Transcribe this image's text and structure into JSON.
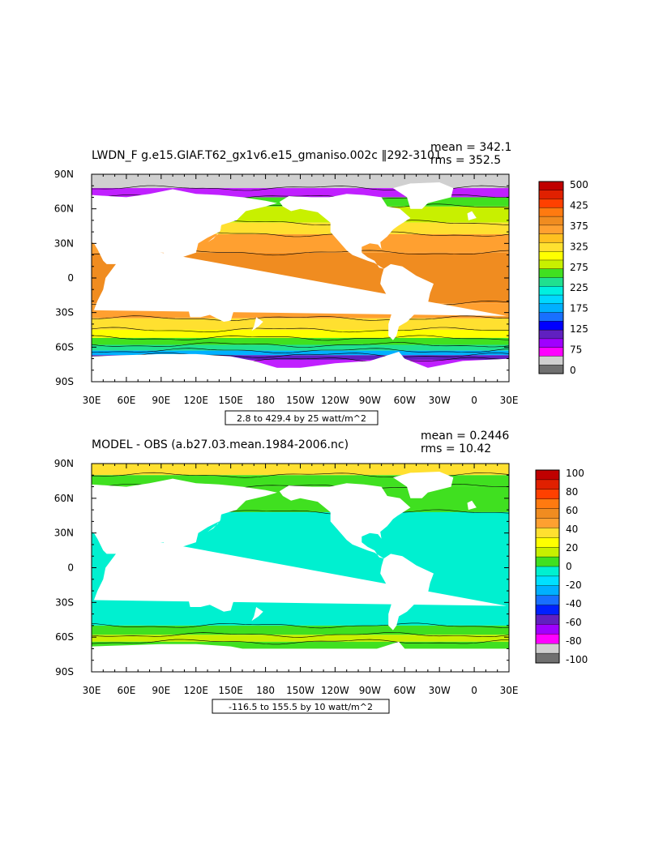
{
  "panels": [
    {
      "id": "top",
      "title": "LWDN_F g.e15.GIAF.T62_gx1v6.e15_gmaniso.002c ‖292-3101",
      "stat_mean": "mean = 342.1",
      "stat_rms": "rms = 352.5",
      "contour_info": "2.8 to 429.4 by 25 watt/m^2",
      "colorbar": {
        "labels": [
          "500",
          "425",
          "375",
          "325",
          "275",
          "225",
          "175",
          "125",
          "75",
          "0"
        ],
        "colors": [
          "#c00000",
          "#e02000",
          "#ff4000",
          "#ff7a10",
          "#f08c20",
          "#ffa030",
          "#ffc020",
          "#ffe030",
          "#ffff00",
          "#c8f000",
          "#40e020",
          "#20e090",
          "#00f0e0",
          "#00d8ff",
          "#00b0ff",
          "#1870ff",
          "#0000ff",
          "#6020c0",
          "#a000ff",
          "#ff00ff",
          "#d0d0d0",
          "#707070"
        ]
      },
      "map_zones": [
        {
          "lat": [
            78,
            90
          ],
          "value": 0,
          "color": "#d0d0d0"
        },
        {
          "lat": [
            70,
            78
          ],
          "value": 75,
          "color": "#c020ff"
        },
        {
          "lat": [
            62,
            70
          ],
          "value": 250,
          "color": "#40e020"
        },
        {
          "lat": [
            48,
            62
          ],
          "value": 290,
          "color": "#c8f000"
        },
        {
          "lat": [
            38,
            48
          ],
          "value": 320,
          "color": "#ffe030"
        },
        {
          "lat": [
            22,
            38
          ],
          "value": 350,
          "color": "#ffa030"
        },
        {
          "lat": [
            -22,
            22
          ],
          "value": 390,
          "color": "#f08c20"
        },
        {
          "lat": [
            -35,
            -22
          ],
          "value": 360,
          "color": "#ffa030"
        },
        {
          "lat": [
            -45,
            -35
          ],
          "value": 320,
          "color": "#ffe030"
        },
        {
          "lat": [
            -52,
            -45
          ],
          "value": 300,
          "color": "#ffff00"
        },
        {
          "lat": [
            -58,
            -52
          ],
          "value": 270,
          "color": "#40e020"
        },
        {
          "lat": [
            -63,
            -58
          ],
          "value": 230,
          "color": "#20e090"
        },
        {
          "lat": [
            -67,
            -63
          ],
          "value": 170,
          "color": "#00b0ff"
        },
        {
          "lat": [
            -71,
            -67
          ],
          "value": 110,
          "color": "#6020c0"
        },
        {
          "lat": [
            -78,
            -71
          ],
          "value": 75,
          "color": "#c020ff"
        }
      ]
    },
    {
      "id": "bottom",
      "title": "MODEL - OBS (a.b27.03.mean.1984-2006.nc)",
      "stat_mean": "mean = 0.2446",
      "stat_rms": "rms = 10.42",
      "contour_info": "-116.5 to 155.5 by 10 watt/m^2",
      "colorbar": {
        "labels": [
          "100",
          "80",
          "60",
          "40",
          "20",
          "0",
          "-20",
          "-40",
          "-60",
          "-80",
          "-100"
        ],
        "colors": [
          "#c00000",
          "#e02000",
          "#ff4000",
          "#ff7a10",
          "#f08c20",
          "#ffa030",
          "#ffe030",
          "#ffff00",
          "#c8f000",
          "#40e020",
          "#00f0d0",
          "#00e0ff",
          "#00b0ff",
          "#1870ff",
          "#0020ff",
          "#6020c0",
          "#a000ff",
          "#ff00ff",
          "#d0d0d0",
          "#707070"
        ]
      },
      "map_zones": [
        {
          "lat": [
            80,
            90
          ],
          "value": 30,
          "color": "#ffe030"
        },
        {
          "lat": [
            70,
            80
          ],
          "value": 10,
          "color": "#40e020"
        },
        {
          "lat": [
            48,
            70
          ],
          "value": 5,
          "color": "#40e020"
        },
        {
          "lat": [
            -50,
            48
          ],
          "value": -5,
          "color": "#00f0d0"
        },
        {
          "lat": [
            -58,
            -50
          ],
          "value": 5,
          "color": "#40e020"
        },
        {
          "lat": [
            -64,
            -58
          ],
          "value": 15,
          "color": "#c8f000"
        },
        {
          "lat": [
            -70,
            -64
          ],
          "value": 5,
          "color": "#40e020"
        }
      ]
    }
  ],
  "x_ticks": [
    "30E",
    "60E",
    "90E",
    "120E",
    "150E",
    "180",
    "150W",
    "120W",
    "90W",
    "60W",
    "30W",
    "0",
    "30E"
  ],
  "y_ticks": [
    "90N",
    "60N",
    "30N",
    "0",
    "30S",
    "60S",
    "90S"
  ]
}
